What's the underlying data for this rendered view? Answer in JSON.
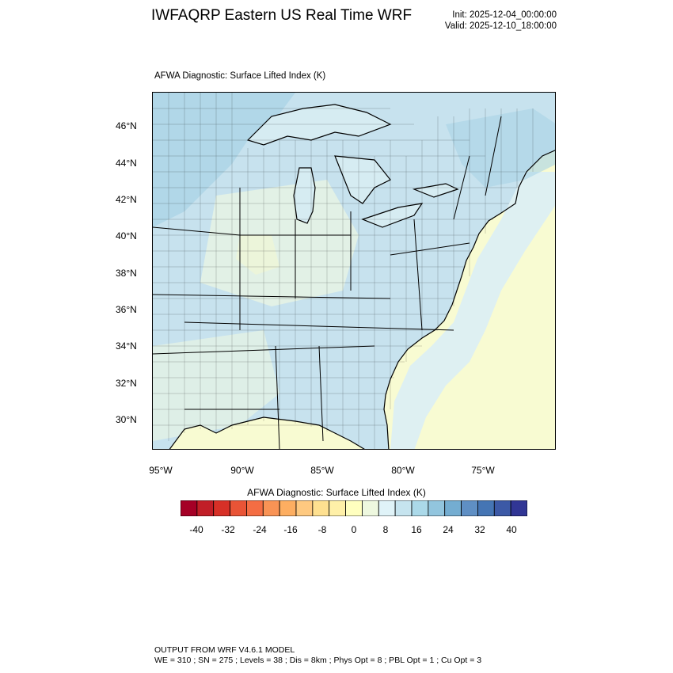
{
  "header": {
    "title": "IWFAQRP Eastern US Real Time WRF",
    "init": "Init: 2025-12-04_00:00:00",
    "valid": "Valid: 2025-12-10_18:00:00"
  },
  "map": {
    "plot_label": "AFWA Diagnostic: Surface Lifted Index   (K)",
    "lat_labels": [
      "46°N",
      "44°N",
      "42°N",
      "40°N",
      "38°N",
      "36°N",
      "34°N",
      "32°N",
      "30°N"
    ],
    "lon_labels": [
      "95°W",
      "90°W",
      "85°W",
      "80°W",
      "75°W"
    ],
    "colors": {
      "ocean_warm": "#f8fbd2",
      "lake": "#d6ecf2",
      "land_base": "#c7e2ee",
      "border": "#000000"
    }
  },
  "colorbar": {
    "title": "AFWA Diagnostic: Surface Lifted Index  (K)",
    "tick_labels": [
      "-40",
      "-32",
      "-24",
      "-16",
      "-8",
      "0",
      "8",
      "16",
      "24",
      "32",
      "40"
    ],
    "colors": [
      "#a50026",
      "#c11e27",
      "#d73027",
      "#e95436",
      "#f46d43",
      "#f99355",
      "#fdae61",
      "#fec980",
      "#fee090",
      "#fff0a8",
      "#ffffbf",
      "#eef8df",
      "#e0f3f8",
      "#c6e4ef",
      "#abd9e9",
      "#92c5de",
      "#74add1",
      "#5f8fc4",
      "#4575b4",
      "#3c59a6",
      "#313695"
    ]
  },
  "footer": {
    "line1": "OUTPUT FROM WRF V4.6.1 MODEL",
    "line2": "WE = 310 ; SN = 275 ; Levels = 38 ; Dis = 8km ; Phys Opt = 8 ; PBL Opt = 1 ; Cu Opt = 3"
  }
}
